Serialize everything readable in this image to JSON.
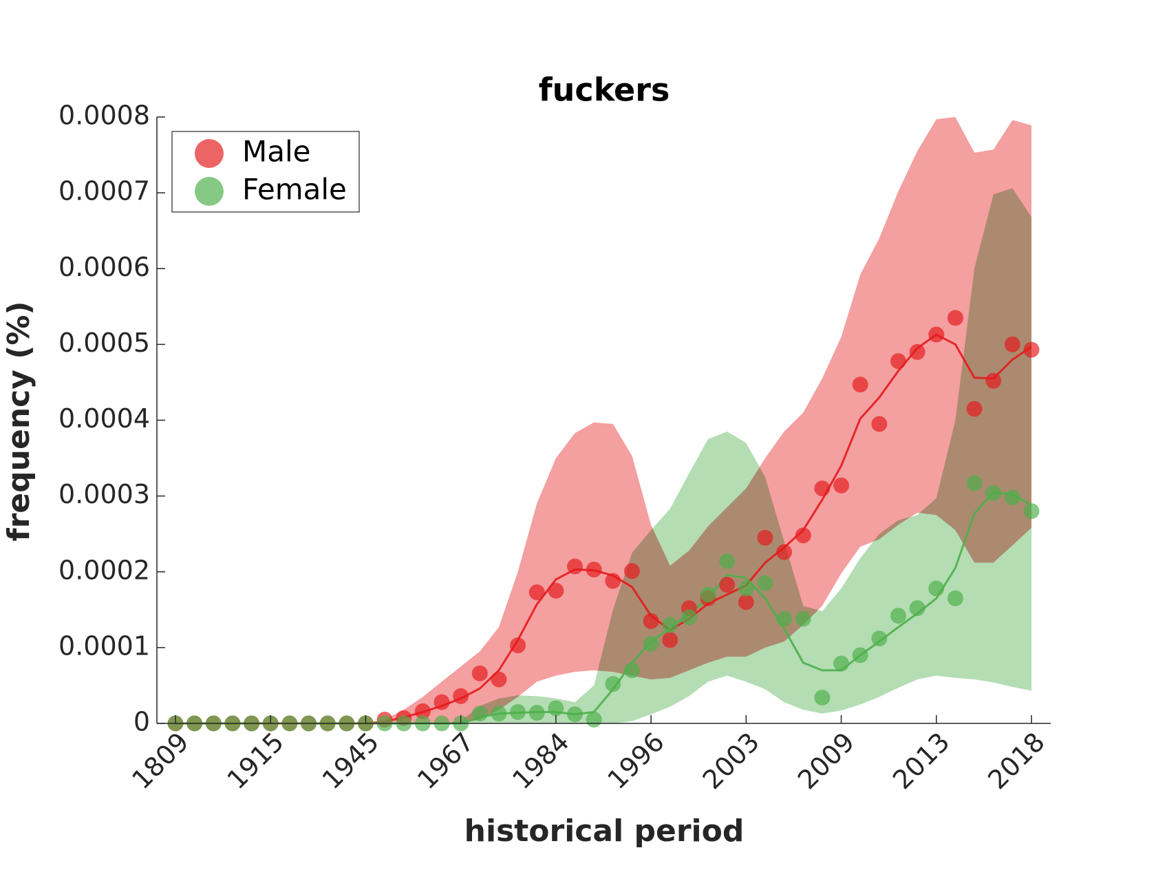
{
  "chart_data": {
    "type": "line",
    "title": "fuckers",
    "x_label": "historical period",
    "y_label": "frequency (%)",
    "categories": [
      "1809",
      null,
      null,
      null,
      null,
      "1915",
      null,
      null,
      null,
      null,
      "1945",
      null,
      null,
      null,
      null,
      "1967",
      null,
      null,
      null,
      null,
      "1984",
      null,
      null,
      null,
      null,
      "1996",
      null,
      null,
      null,
      null,
      "2003",
      null,
      null,
      null,
      null,
      "2009",
      null,
      null,
      null,
      null,
      "2013",
      null,
      null,
      null,
      null,
      "2018"
    ],
    "ylim": [
      0,
      0.0008
    ],
    "yticks": [
      0,
      0.0001,
      0.0002,
      0.0003,
      0.0004,
      0.0005,
      0.0006,
      0.0007,
      0.0008
    ],
    "legend": "upper left",
    "series": [
      {
        "name": "Male",
        "color": "#e41a1c",
        "values": [
          0,
          0,
          0,
          0,
          0,
          0,
          0,
          0,
          0,
          0,
          0,
          5e-06,
          7e-06,
          1.6e-05,
          2.8e-05,
          3.6e-05,
          6.6e-05,
          5.8e-05,
          0.000103,
          0.000173,
          0.000175,
          0.000207,
          0.000203,
          0.000188,
          0.000201,
          0.000135,
          0.00011,
          0.000152,
          0.000165,
          0.000183,
          0.00016,
          0.000245,
          0.000226,
          0.000248,
          0.00031,
          0.000314,
          0.000447,
          0.000395,
          0.000478,
          0.00049,
          0.000513,
          0.000535,
          0.000415,
          0.000452,
          0.0005,
          0.000493
        ],
        "trend": [
          0,
          0,
          0,
          0,
          0,
          0,
          0,
          0,
          0,
          0,
          0,
          2e-06,
          8e-06,
          1.5e-05,
          2.3e-05,
          3.3e-05,
          4.6e-05,
          7e-05,
          0.00011,
          0.000157,
          0.00019,
          0.000203,
          0.000202,
          0.000195,
          0.00018,
          0.000142,
          0.000123,
          0.000138,
          0.000158,
          0.00017,
          0.000182,
          0.000212,
          0.000232,
          0.000255,
          0.000295,
          0.00034,
          0.000402,
          0.00043,
          0.000465,
          0.000495,
          0.000513,
          0.0005,
          0.000456,
          0.000455,
          0.00048,
          0.000497
        ],
        "band_upper": [
          0,
          0,
          0,
          0,
          0,
          0,
          0,
          0,
          0,
          0,
          0,
          5e-06,
          1.8e-05,
          3.5e-05,
          5.5e-05,
          7.5e-05,
          9.5e-05,
          0.000127,
          0.0002,
          0.00029,
          0.00035,
          0.000383,
          0.000397,
          0.000395,
          0.000353,
          0.000262,
          0.000208,
          0.000228,
          0.00026,
          0.000285,
          0.00031,
          0.00035,
          0.000385,
          0.00041,
          0.000455,
          0.00051,
          0.000592,
          0.00064,
          0.000702,
          0.000755,
          0.000797,
          0.0008,
          0.000753,
          0.000757,
          0.000796,
          0.000789
        ],
        "band_lower": [
          0,
          0,
          0,
          0,
          0,
          0,
          0,
          0,
          0,
          0,
          0,
          0,
          0,
          0,
          0,
          0,
          5e-06,
          1.8e-05,
          3.5e-05,
          5.5e-05,
          6.3e-05,
          6.8e-05,
          7e-05,
          6.8e-05,
          6.3e-05,
          5.8e-05,
          6e-05,
          7e-05,
          8e-05,
          8.8e-05,
          8.8e-05,
          0.0001,
          0.000108,
          0.00013,
          0.000155,
          0.000198,
          0.000233,
          0.000243,
          0.000262,
          0.000278,
          0.000275,
          0.000255,
          0.000212,
          0.000212,
          0.000235,
          0.000258
        ]
      },
      {
        "name": "Female",
        "color": "#4daf4a",
        "values": [
          0,
          0,
          0,
          0,
          0,
          0,
          0,
          0,
          0,
          0,
          0,
          0,
          0,
          0,
          0,
          0,
          1.3e-05,
          1.3e-05,
          1.5e-05,
          1.4e-05,
          2e-05,
          1.2e-05,
          5e-06,
          5.2e-05,
          7e-05,
          0.000105,
          0.00013,
          0.00014,
          0.00017,
          0.000214,
          0.000178,
          0.000185,
          0.000138,
          0.000138,
          3.4e-05,
          7.9e-05,
          9e-05,
          0.000112,
          0.000142,
          0.000152,
          0.000178,
          0.000165,
          0.000317,
          0.000304,
          0.000298,
          0.00028
        ],
        "trend": [
          0,
          0,
          0,
          0,
          0,
          0,
          0,
          0,
          0,
          0,
          0,
          0,
          0,
          0,
          0,
          0,
          8e-06,
          1.3e-05,
          1.4e-05,
          1.5e-05,
          1.5e-05,
          1.2e-05,
          1.5e-05,
          4.5e-05,
          8e-05,
          0.000108,
          0.000125,
          0.000145,
          0.000165,
          0.000196,
          0.000192,
          0.000165,
          0.000125,
          8e-05,
          7e-05,
          7e-05,
          9e-05,
          0.000108,
          0.000127,
          0.000145,
          0.000165,
          0.000205,
          0.000277,
          0.000305,
          0.000302,
          0.000288
        ],
        "band_upper": [
          0,
          0,
          0,
          0,
          0,
          0,
          0,
          0,
          0,
          0,
          0,
          0,
          0,
          0,
          0,
          3e-06,
          2.3e-05,
          3.3e-05,
          3.7e-05,
          3.6e-05,
          3.3e-05,
          2.8e-05,
          5e-05,
          0.00015,
          0.000225,
          0.000255,
          0.000283,
          0.00033,
          0.000375,
          0.000385,
          0.00037,
          0.000325,
          0.00024,
          0.000155,
          0.000148,
          0.000178,
          0.000218,
          0.00025,
          0.000268,
          0.000275,
          0.000297,
          0.0004,
          0.0006,
          0.000698,
          0.000706,
          0.000668
        ],
        "band_lower": [
          0,
          0,
          0,
          0,
          0,
          0,
          0,
          0,
          0,
          0,
          0,
          0,
          0,
          0,
          0,
          0,
          0,
          0,
          0,
          0,
          0,
          0,
          0,
          0,
          3e-06,
          1.2e-05,
          2.2e-05,
          3.6e-05,
          5.5e-05,
          6.3e-05,
          5.5e-05,
          4.5e-05,
          2.8e-05,
          1.8e-05,
          1.3e-05,
          1.7e-05,
          2.5e-05,
          3.5e-05,
          4.7e-05,
          5.8e-05,
          6.3e-05,
          6e-05,
          5.8e-05,
          5.4e-05,
          4.8e-05,
          4.3e-05
        ]
      }
    ]
  }
}
